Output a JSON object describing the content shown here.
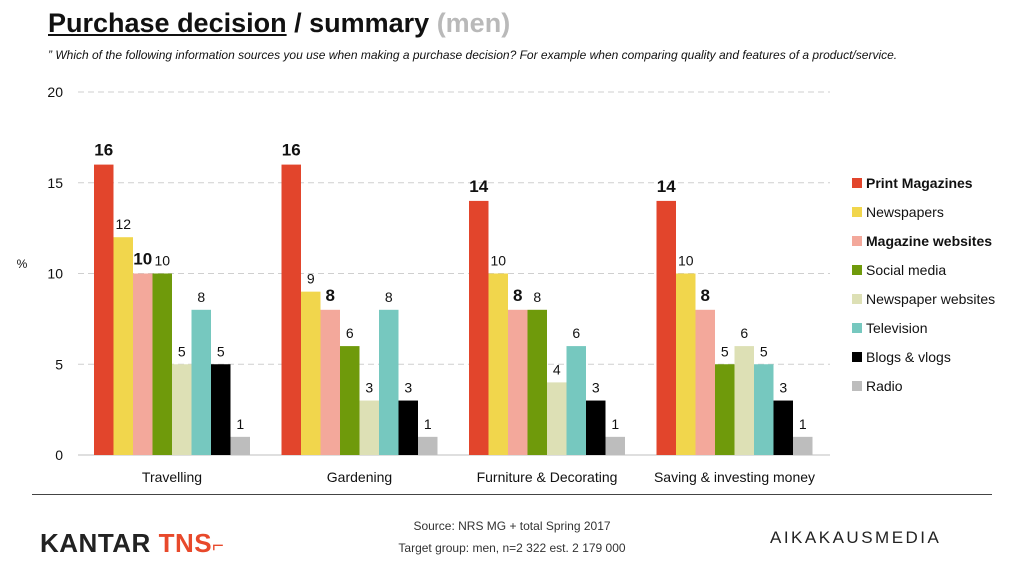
{
  "header": {
    "title_main": "Purchase decision",
    "title_sep": " / summary ",
    "title_men": "(men)",
    "subtitle": "” Which of the following information sources you use when making a purchase decision? For example when comparing quality and features of a product/service."
  },
  "chart_data": {
    "type": "bar",
    "ylabel": "%",
    "ylim": [
      0,
      20
    ],
    "yticks": [
      0,
      5,
      10,
      15,
      20
    ],
    "grid": true,
    "legend_position": "right",
    "categories": [
      "Travelling",
      "Gardening",
      "Furniture & Decorating",
      "Saving & investing money"
    ],
    "series": [
      {
        "name": "Print Magazines",
        "color": "#e2452c",
        "bold": true,
        "values": [
          16,
          16,
          14,
          14
        ]
      },
      {
        "name": "Newspapers",
        "color": "#f1d64c",
        "bold": false,
        "values": [
          12,
          9,
          10,
          10
        ]
      },
      {
        "name": "Magazine websites",
        "color": "#f3a89b",
        "bold": true,
        "values": [
          10,
          8,
          8,
          8
        ]
      },
      {
        "name": "Social media",
        "color": "#6f9a0b",
        "bold": false,
        "values": [
          10,
          6,
          8,
          5
        ]
      },
      {
        "name": "Newspaper websites",
        "color": "#dde0b5",
        "bold": false,
        "values": [
          5,
          3,
          4,
          6
        ]
      },
      {
        "name": "Television",
        "color": "#76c8bf",
        "bold": false,
        "values": [
          8,
          8,
          6,
          5
        ]
      },
      {
        "name": "Blogs & vlogs",
        "color": "#000000",
        "bold": false,
        "values": [
          5,
          3,
          3,
          3
        ]
      },
      {
        "name": "Radio",
        "color": "#bdbdbd",
        "bold": false,
        "values": [
          1,
          1,
          1,
          1
        ]
      }
    ]
  },
  "footer": {
    "logo_left_a": "KANTAR",
    "logo_left_b": "TNS",
    "logo_left_mark": "⌐",
    "source_line1": "Source: NRS MG + total Spring 2017",
    "source_line2": "Target group: men, n=2 322 est. 2 179 000",
    "logo_right": "AIKAKAUSMEDIA"
  }
}
